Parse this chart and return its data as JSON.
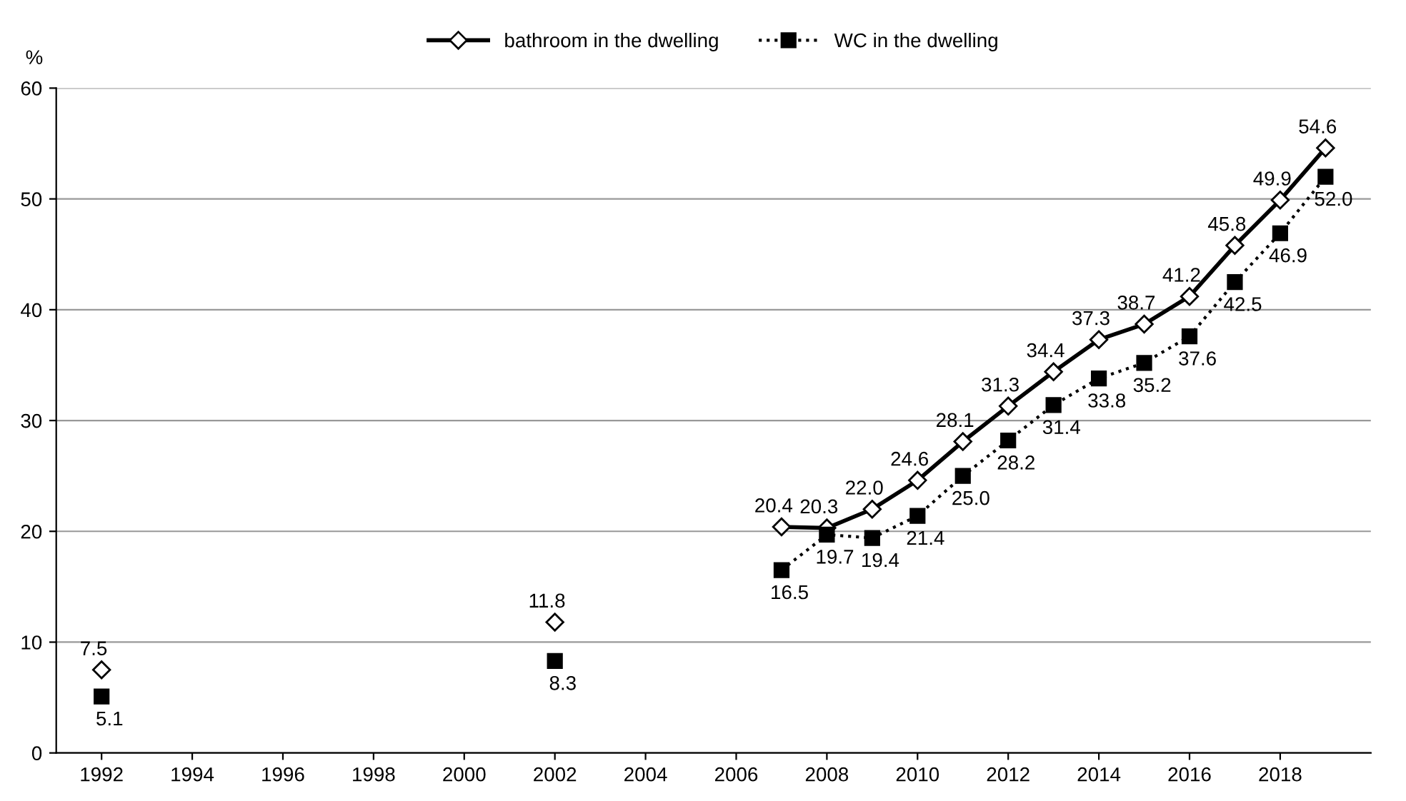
{
  "chart_data": {
    "type": "line",
    "ylabel": "%",
    "x": [
      1992,
      1997,
      2002,
      2005,
      2007,
      2008,
      2009,
      2010,
      2011,
      2012,
      2013,
      2014,
      2015,
      2016,
      2017,
      2018,
      2019
    ],
    "series": [
      {
        "name": "bathroom in the dwelling",
        "color": "#000000",
        "marker": "diamond",
        "line_style": "solid",
        "values": [
          7.5,
          null,
          11.8,
          null,
          20.4,
          20.3,
          22.0,
          24.6,
          28.1,
          31.3,
          34.4,
          37.3,
          38.7,
          41.2,
          45.8,
          49.9,
          54.6
        ],
        "value_labels": [
          "7.5",
          null,
          "11.8",
          null,
          "20.4",
          "20.3",
          "22.0",
          "24.6",
          "28.1",
          "31.3",
          "34.4",
          "37.3",
          "38.7",
          "41.2",
          "45.8",
          "49.9",
          "54.6"
        ]
      },
      {
        "name": "WC in the dwelling",
        "color": "#000000",
        "marker": "square",
        "line_style": "dotted",
        "values": [
          5.1,
          null,
          8.3,
          null,
          16.5,
          19.7,
          19.4,
          21.4,
          25.0,
          28.2,
          31.4,
          33.8,
          35.2,
          37.6,
          42.5,
          46.9,
          52.0
        ],
        "value_labels": [
          "5.1",
          null,
          "8.3",
          null,
          "16.5",
          "19.7",
          "19.4",
          "21.4",
          "25.0",
          "28.2",
          "31.4",
          "33.8",
          "35.2",
          "37.6",
          "42.5",
          "46.9",
          "52.0"
        ]
      }
    ],
    "xlim": [
      1991,
      2020
    ],
    "xticks": [
      1992,
      1994,
      1996,
      1998,
      2000,
      2002,
      2004,
      2006,
      2008,
      2010,
      2012,
      2014,
      2016,
      2018
    ],
    "ylim": [
      0,
      60
    ],
    "yticks": [
      0,
      10,
      20,
      30,
      40,
      50,
      60
    ],
    "grid": "y",
    "legend": "top"
  }
}
